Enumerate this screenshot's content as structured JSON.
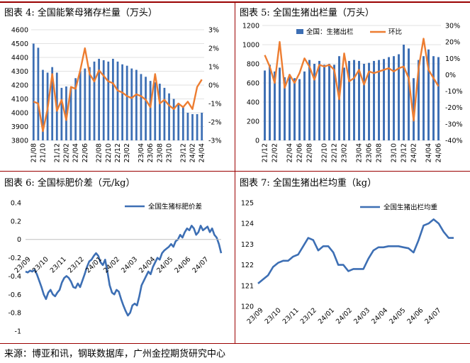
{
  "titles": {
    "fig4": "图表 4:  全国能繁母猪存栏量（万头）",
    "fig5": "图表 5:  全国生猪出栏量（万头）",
    "fig6": "图表 6:  全国标肥价差（元/kg）",
    "fig7": "图表 7:  全国生猪出栏均重（kg）"
  },
  "source": "来源：博亚和讯，钢联数据库，广州金控期货研究中心",
  "colors": {
    "bar": "#3d6fb4",
    "line_orange": "#ed7d31",
    "line_blue": "#3d6fb4",
    "rule": "#9a0000"
  },
  "chart_data": [
    {
      "id": "fig4",
      "type": "bar",
      "title": "全国能繁母猪存栏量（万头）",
      "x_ticks": [
        "21/08",
        "21/10",
        "21/12",
        "22/02",
        "22/04",
        "22/06",
        "22/08",
        "22/10",
        "22/12",
        "23/02",
        "23/04",
        "23/06",
        "23/08",
        "23/10",
        "23/12",
        "24/02",
        "24/04"
      ],
      "left_axis": {
        "ylim": [
          3800,
          4600
        ],
        "ticks": [
          3800,
          3900,
          4000,
          4100,
          4200,
          4300,
          4400,
          4500,
          4600
        ]
      },
      "right_axis": {
        "ylim": [
          -3,
          3
        ],
        "ticks": [
          "-3%",
          "-2%",
          "-1%",
          "0%",
          "1%",
          "2%",
          "3%"
        ]
      },
      "bars": [
        4500,
        4470,
        4310,
        4290,
        4330,
        4290,
        4180,
        4190,
        4180,
        4250,
        4300,
        4320,
        4330,
        4370,
        4390,
        4380,
        4370,
        4390,
        4370,
        4350,
        4340,
        4320,
        4310,
        4280,
        4260,
        4230,
        4220,
        4210,
        4180,
        4140,
        4100,
        4070,
        4040,
        4000,
        3990,
        3990,
        4000
      ],
      "line": [
        -0.9,
        -1.0,
        -2.5,
        -1.3,
        0.6,
        -1.4,
        -0.8,
        -1.9,
        -0.1,
        -0.2,
        0.8,
        2.0,
        0.6,
        0.2,
        0.8,
        0.5,
        0.2,
        0.1,
        -0.3,
        -0.4,
        -0.6,
        -0.7,
        -0.5,
        -0.6,
        -0.8,
        -1.2,
        0.6,
        -1.0,
        -0.8,
        -1.1,
        -1.3,
        -1.0,
        -1.2,
        -0.9,
        -1.3,
        -0.1,
        0.3
      ]
    },
    {
      "id": "fig5",
      "type": "bar",
      "title": "全国生猪出栏量（万头）",
      "legend": [
        "全国：生猪出栏",
        "环比"
      ],
      "x_ticks": [
        "21/12",
        "22/02",
        "22/04",
        "22/06",
        "22/08",
        "22/10",
        "22/12",
        "23/02",
        "23/04",
        "23/06",
        "23/08",
        "23/10",
        "23/12",
        "24/02",
        "24/04",
        "24/06"
      ],
      "left_axis": {
        "ylim": [
          0,
          1200
        ],
        "ticks": [
          0,
          200,
          400,
          600,
          800,
          1000,
          1200
        ]
      },
      "right_axis": {
        "ylim": [
          -40,
          30
        ],
        "ticks": [
          "-40%",
          "-30%",
          "-20%",
          "-10%",
          "0%",
          "10%",
          "20%",
          "30%"
        ]
      },
      "bars": [
        730,
        790,
        720,
        760,
        660,
        690,
        650,
        640,
        720,
        840,
        800,
        830,
        790,
        800,
        790,
        880,
        760,
        830,
        840,
        830,
        800,
        810,
        830,
        840,
        850,
        870,
        880,
        900,
        1000,
        960,
        650,
        840,
        880,
        950,
        880,
        870
      ],
      "line": [
        12,
        5,
        -5,
        20,
        -8,
        0,
        -5,
        1,
        10,
        5,
        -3,
        6,
        5,
        6,
        3,
        -15,
        13,
        -4,
        -2,
        3,
        -6,
        2,
        1,
        2,
        3,
        4,
        2,
        4,
        5,
        -2,
        -28,
        4,
        22,
        3,
        -2,
        -7
      ]
    },
    {
      "id": "fig6",
      "type": "line",
      "title": "全国标肥价差（元/kg）",
      "legend": [
        "全国生猪标肥价差"
      ],
      "x_ticks": [
        "23/09",
        "23/10",
        "23/11",
        "23/12",
        "24/01",
        "24/02",
        "24/03",
        "24/04",
        "24/05",
        "24/06",
        "24/07"
      ],
      "ylim": [
        -1,
        0.4
      ],
      "y_ticks": [
        "-1",
        "-0.8",
        "-0.6",
        "-0.4",
        "-0.2",
        "0",
        "0.2",
        "0.4"
      ],
      "values": [
        -0.35,
        -0.36,
        -0.34,
        -0.35,
        -0.33,
        -0.38,
        -0.45,
        -0.52,
        -0.6,
        -0.65,
        -0.58,
        -0.55,
        -0.6,
        -0.62,
        -0.58,
        -0.55,
        -0.47,
        -0.42,
        -0.4,
        -0.42,
        -0.46,
        -0.52,
        -0.53,
        -0.48,
        -0.52,
        -0.45,
        -0.38,
        -0.3,
        -0.24,
        -0.22,
        -0.18,
        -0.15,
        -0.18,
        -0.25,
        -0.28,
        -0.22,
        -0.35,
        -0.5,
        -0.58,
        -0.6,
        -0.55,
        -0.57,
        -0.65,
        -0.72,
        -0.78,
        -0.83,
        -0.8,
        -0.72,
        -0.7,
        -0.72,
        -0.62,
        -0.5,
        -0.45,
        -0.4,
        -0.35,
        -0.38,
        -0.3,
        -0.25,
        -0.2,
        -0.22,
        -0.15,
        -0.12,
        -0.1,
        -0.08,
        -0.05,
        -0.08,
        -0.02,
        0.0,
        0.05,
        0.02,
        0.08,
        0.12,
        0.1,
        0.15,
        0.12,
        0.05,
        0.08,
        0.15,
        0.1,
        0.12,
        0.14,
        0.08,
        0.12,
        0.05,
        0.02,
        -0.05,
        -0.15
      ]
    },
    {
      "id": "fig7",
      "type": "line",
      "title": "全国生猪出栏均重（kg）",
      "legend": [
        "全国生猪出栏均重"
      ],
      "x_ticks": [
        "23/09",
        "23/10",
        "23/11",
        "23/12",
        "24/01",
        "24/02",
        "24/03",
        "24/04",
        "24/05",
        "24/06",
        "24/07"
      ],
      "ylim": [
        120,
        125
      ],
      "y_ticks": [
        "120",
        "121",
        "122",
        "123",
        "124",
        "125"
      ],
      "values": [
        121.1,
        121.3,
        121.5,
        121.9,
        122.1,
        122.2,
        122.2,
        122.4,
        122.5,
        122.9,
        123.3,
        123.2,
        122.7,
        122.9,
        122.9,
        122.6,
        122.0,
        122.0,
        121.7,
        121.8,
        121.8,
        121.8,
        122.3,
        122.7,
        122.85,
        122.85,
        122.9,
        122.9,
        122.9,
        122.85,
        122.8,
        122.6,
        123.2,
        123.9,
        124.0,
        124.2,
        124.0,
        123.6,
        123.3,
        123.3
      ]
    }
  ]
}
